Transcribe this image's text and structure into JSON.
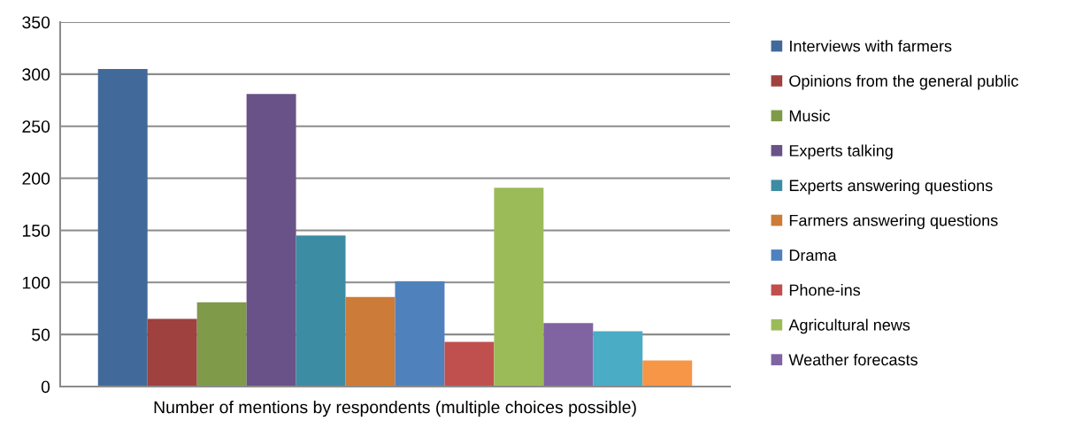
{
  "chart_data": {
    "type": "bar",
    "xlabel": "Number of mentions by respondents (multiple choices possible)",
    "categories": [
      null
    ],
    "series": [
      {
        "name": "Interviews with farmers",
        "color": "#416a9b",
        "values": [
          305
        ]
      },
      {
        "name": "Opinions from the general public",
        "color": "#9e413f",
        "values": [
          65
        ]
      },
      {
        "name": "Music",
        "color": "#7f9a48",
        "values": [
          81
        ]
      },
      {
        "name": "Experts talking",
        "color": "#695287",
        "values": [
          281
        ]
      },
      {
        "name": "Experts answering questions",
        "color": "#3c8ca3",
        "values": [
          145
        ]
      },
      {
        "name": "Farmers answering questions",
        "color": "#cc7b38",
        "values": [
          86
        ]
      },
      {
        "name": "Drama",
        "color": "#4f81bd",
        "values": [
          101
        ]
      },
      {
        "name": "Phone-ins",
        "color": "#c0504e",
        "values": [
          43
        ]
      },
      {
        "name": "Agricultural news",
        "color": "#9bbb59",
        "values": [
          191
        ]
      },
      {
        "name": "Weather forecasts",
        "color": "#8064a2",
        "values": [
          61
        ]
      },
      {
        "color": "#4bacc6",
        "values": [
          53
        ]
      },
      {
        "color": "#f79646",
        "values": [
          25
        ]
      }
    ],
    "ylim": [
      0,
      350
    ],
    "yticks": [
      0,
      50,
      100,
      150,
      200,
      250,
      300,
      350
    ],
    "grid": "y",
    "legend": "right"
  }
}
